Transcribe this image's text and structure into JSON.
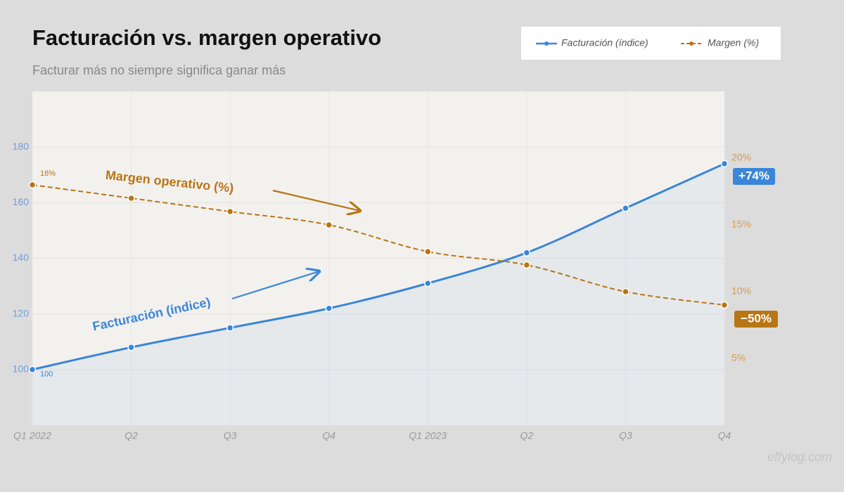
{
  "chart_data": {
    "type": "line",
    "title": "Facturación vs. margen operativo",
    "subtitle": "Facturar más no siempre significa ganar más",
    "categories": [
      "Q1 2022",
      "Q2",
      "Q3",
      "Q4",
      "Q1 2023",
      "Q2",
      "Q3",
      "Q4"
    ],
    "series": [
      {
        "name": "Facturación (índice)",
        "color": "#3a86d8",
        "values": [
          100,
          108,
          115,
          122,
          131,
          142,
          158,
          174
        ],
        "area": true
      },
      {
        "name": "Margen (%)",
        "color": "#b87514",
        "axis": "y2",
        "dashed": true,
        "values": [
          18,
          17,
          16,
          15,
          13,
          12,
          10,
          9
        ],
        "value_labels": [
          "18%",
          null,
          null,
          null,
          null,
          null,
          null,
          null
        ]
      }
    ],
    "ylim": [
      80,
      200
    ],
    "yticks": [
      100,
      120,
      140,
      160,
      180
    ],
    "y2lim": [
      0,
      25
    ],
    "y2ticks": [
      {
        "value": 5,
        "label": "5%"
      },
      {
        "value": 10,
        "label": "10%"
      },
      {
        "value": 15,
        "label": "15%"
      },
      {
        "value": 20,
        "label": "20%"
      }
    ],
    "grid": true,
    "legend": "top-right",
    "annotations": [
      {
        "text": "Margen operativo (%)"
      },
      {
        "text": "Facturación (índice)"
      },
      {
        "text": "+74%"
      },
      {
        "text": "−50%"
      }
    ],
    "watermark": "effylog.com"
  }
}
